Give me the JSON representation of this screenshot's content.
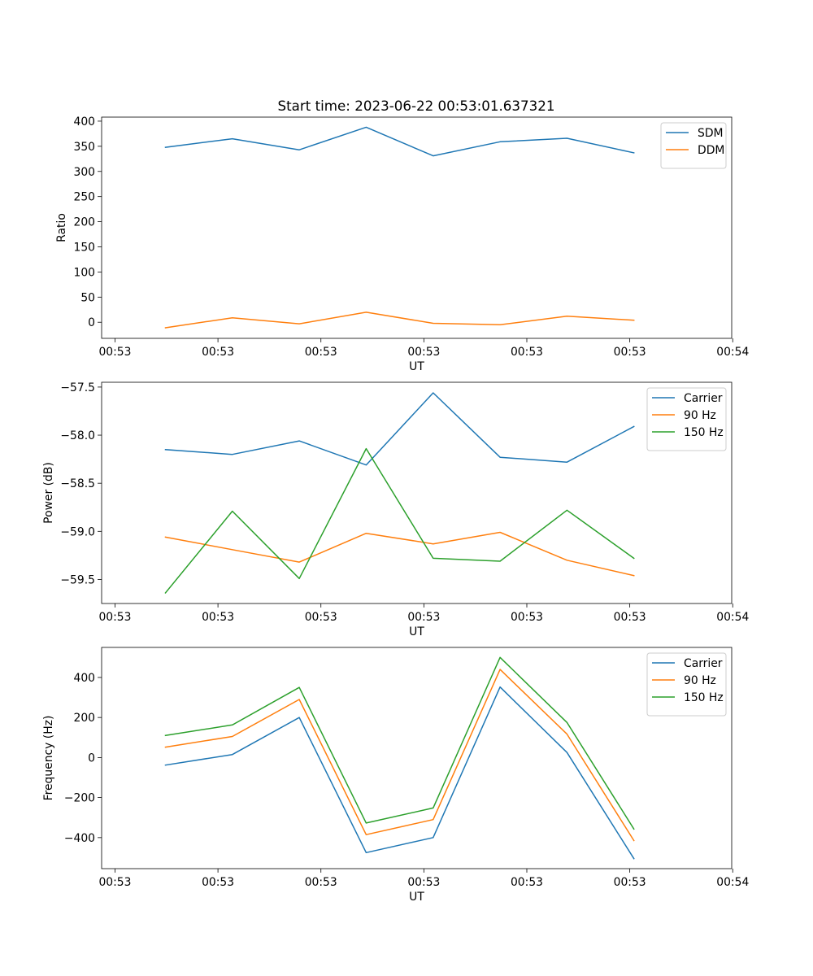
{
  "title": "Start time: 2023-06-22 00:53:01.637321",
  "chart_data": [
    {
      "type": "line",
      "xlabel": "UT",
      "ylabel": "Ratio",
      "x_tick_labels": [
        "00:53",
        "00:53",
        "00:53",
        "00:53",
        "00:53",
        "00:53",
        "00:54"
      ],
      "x_tick_positions": [
        0,
        1,
        2,
        3,
        4,
        5,
        6
      ],
      "xlim": [
        -0.13,
        5.99
      ],
      "x": [
        0.49,
        1.14,
        1.79,
        2.44,
        3.09,
        3.74,
        4.39,
        5.04
      ],
      "y_ticks": [
        0,
        50,
        100,
        150,
        200,
        250,
        300,
        350,
        400
      ],
      "ylim": [
        -32,
        408
      ],
      "legend_position": "upper right",
      "grid": false,
      "series": [
        {
          "name": "SDM",
          "color": "#1f77b4",
          "values": [
            348,
            365,
            343,
            388,
            331,
            359,
            366,
            337
          ]
        },
        {
          "name": "DDM",
          "color": "#ff7f0e",
          "values": [
            -11,
            9,
            -3,
            20,
            -2,
            -5,
            12,
            4
          ]
        }
      ]
    },
    {
      "type": "line",
      "xlabel": "UT",
      "ylabel": "Power (dB)",
      "x_tick_labels": [
        "00:53",
        "00:53",
        "00:53",
        "00:53",
        "00:53",
        "00:53",
        "00:54"
      ],
      "x_tick_positions": [
        0,
        1,
        2,
        3,
        4,
        5,
        6
      ],
      "xlim": [
        -0.13,
        5.99
      ],
      "x": [
        0.49,
        1.14,
        1.79,
        2.44,
        3.09,
        3.74,
        4.39,
        5.04
      ],
      "y_ticks": [
        -59.5,
        -59.0,
        -58.5,
        -58.0,
        -57.5
      ],
      "y_tick_labels": [
        "−59.5",
        "−59.0",
        "−58.5",
        "−58.0",
        "−57.5"
      ],
      "ylim": [
        -59.75,
        -57.45
      ],
      "legend_position": "upper right",
      "grid": false,
      "series": [
        {
          "name": "Carrier",
          "color": "#1f77b4",
          "values": [
            -58.15,
            -58.2,
            -58.06,
            -58.31,
            -57.56,
            -58.23,
            -58.28,
            -57.91
          ]
        },
        {
          "name": "90 Hz",
          "color": "#ff7f0e",
          "values": [
            -59.06,
            -59.19,
            -59.32,
            -59.02,
            -59.13,
            -59.01,
            -59.3,
            -59.46
          ]
        },
        {
          "name": "150 Hz",
          "color": "#2ca02c",
          "values": [
            -59.64,
            -58.79,
            -59.49,
            -58.14,
            -59.28,
            -59.31,
            -58.78,
            -59.28
          ]
        }
      ]
    },
    {
      "type": "line",
      "xlabel": "UT",
      "ylabel": "Frequency (Hz)",
      "x_tick_labels": [
        "00:53",
        "00:53",
        "00:53",
        "00:53",
        "00:53",
        "00:53",
        "00:54"
      ],
      "x_tick_positions": [
        0,
        1,
        2,
        3,
        4,
        5,
        6
      ],
      "xlim": [
        -0.13,
        5.99
      ],
      "x": [
        0.49,
        1.14,
        1.79,
        2.44,
        3.09,
        3.74,
        4.39,
        5.04
      ],
      "y_ticks": [
        -400,
        -200,
        0,
        200,
        400
      ],
      "y_tick_labels": [
        "−400",
        "−200",
        "0",
        "200",
        "400"
      ],
      "ylim": [
        -555,
        550
      ],
      "legend_position": "upper right",
      "grid": false,
      "series": [
        {
          "name": "Carrier",
          "color": "#1f77b4",
          "values": [
            -38,
            15,
            200,
            -475,
            -400,
            352,
            25,
            -505
          ]
        },
        {
          "name": "90 Hz",
          "color": "#ff7f0e",
          "values": [
            52,
            105,
            290,
            -385,
            -310,
            440,
            117,
            -415
          ]
        },
        {
          "name": "150 Hz",
          "color": "#2ca02c",
          "values": [
            110,
            163,
            350,
            -327,
            -252,
            500,
            175,
            -357
          ]
        }
      ]
    }
  ]
}
